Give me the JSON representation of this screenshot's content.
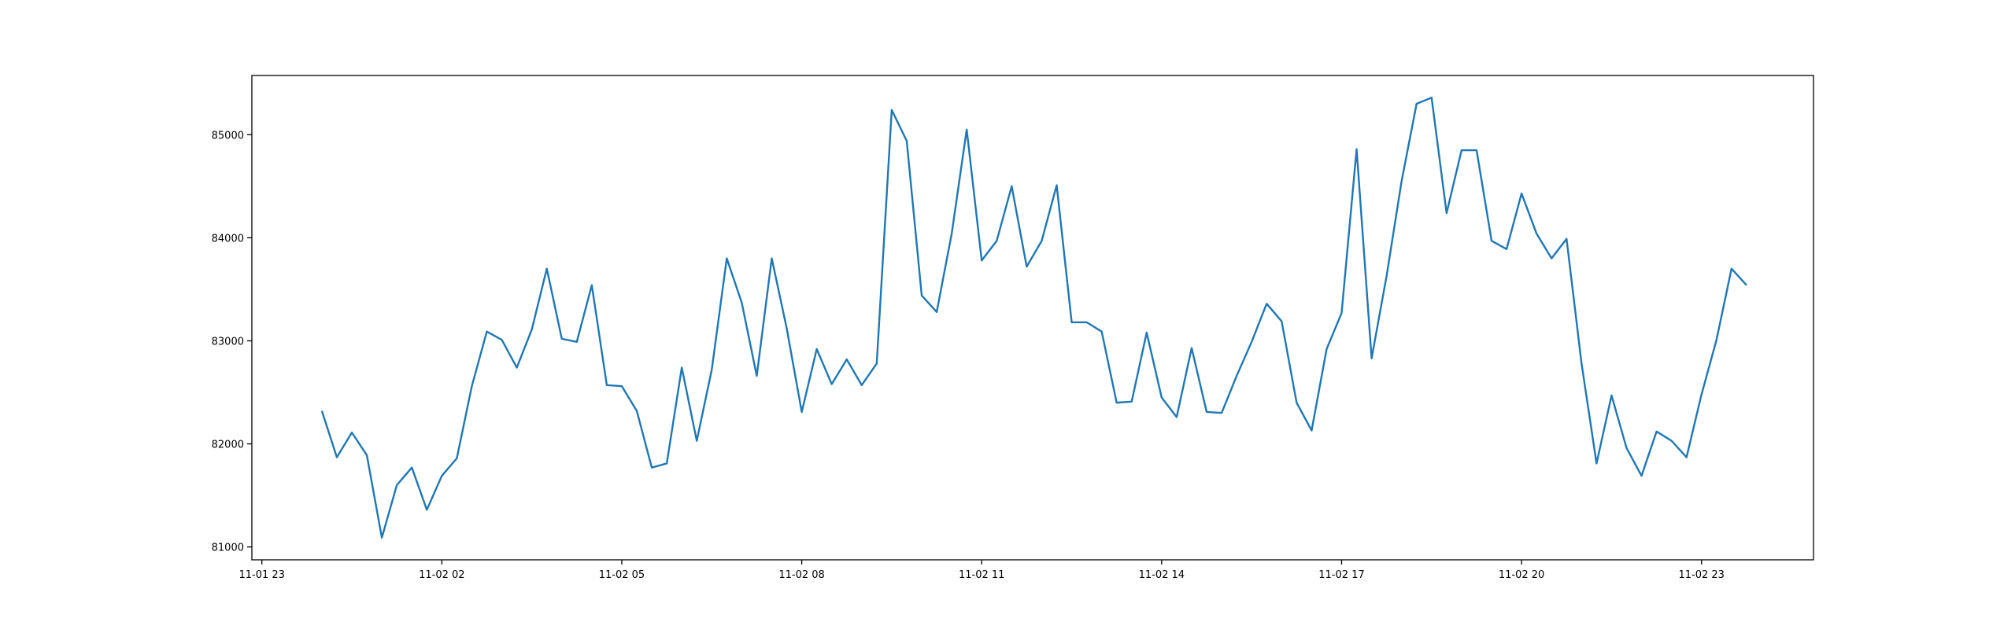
{
  "chart_data": {
    "type": "line",
    "color": "#1f77b4",
    "x": [
      "11-02 00:00",
      "11-02 00:15",
      "11-02 00:30",
      "11-02 00:45",
      "11-02 01:00",
      "11-02 01:15",
      "11-02 01:30",
      "11-02 01:45",
      "11-02 02:00",
      "11-02 02:15",
      "11-02 02:30",
      "11-02 02:45",
      "11-02 03:00",
      "11-02 03:15",
      "11-02 03:30",
      "11-02 03:45",
      "11-02 04:00",
      "11-02 04:15",
      "11-02 04:30",
      "11-02 04:45",
      "11-02 05:00",
      "11-02 05:15",
      "11-02 05:30",
      "11-02 05:45",
      "11-02 06:00",
      "11-02 06:15",
      "11-02 06:30",
      "11-02 06:45",
      "11-02 07:00",
      "11-02 07:15",
      "11-02 07:30",
      "11-02 07:45",
      "11-02 08:00",
      "11-02 08:15",
      "11-02 08:30",
      "11-02 08:45",
      "11-02 09:00",
      "11-02 09:15",
      "11-02 09:30",
      "11-02 09:45",
      "11-02 10:00",
      "11-02 10:15",
      "11-02 10:30",
      "11-02 10:45",
      "11-02 11:00",
      "11-02 11:15",
      "11-02 11:30",
      "11-02 11:45",
      "11-02 12:00",
      "11-02 12:15",
      "11-02 12:30",
      "11-02 12:45",
      "11-02 13:00",
      "11-02 13:15",
      "11-02 13:30",
      "11-02 13:45",
      "11-02 14:00",
      "11-02 14:15",
      "11-02 14:30",
      "11-02 14:45",
      "11-02 15:00",
      "11-02 15:15",
      "11-02 15:30",
      "11-02 15:45",
      "11-02 16:00",
      "11-02 16:15",
      "11-02 16:30",
      "11-02 16:45",
      "11-02 17:00",
      "11-02 17:15",
      "11-02 17:30",
      "11-02 17:45",
      "11-02 18:00",
      "11-02 18:15",
      "11-02 18:30",
      "11-02 18:45",
      "11-02 19:00",
      "11-02 19:15",
      "11-02 19:30",
      "11-02 19:45",
      "11-02 20:00",
      "11-02 20:15",
      "11-02 20:30",
      "11-02 20:45",
      "11-02 21:00",
      "11-02 21:15",
      "11-02 21:30",
      "11-02 21:45",
      "11-02 22:00",
      "11-02 22:15",
      "11-02 22:30",
      "11-02 22:45",
      "11-02 23:00",
      "11-02 23:15",
      "11-02 23:30",
      "11-02 23:45"
    ],
    "values": [
      82320,
      81870,
      82110,
      81890,
      81090,
      81600,
      81770,
      81360,
      81690,
      81860,
      82560,
      83090,
      83010,
      82740,
      83110,
      83700,
      83020,
      82990,
      83540,
      82570,
      82560,
      82320,
      81770,
      81810,
      82740,
      82030,
      82720,
      83800,
      83370,
      82660,
      83800,
      83120,
      82310,
      82920,
      82580,
      82820,
      82570,
      82780,
      85240,
      84940,
      83440,
      83280,
      84040,
      85050,
      83780,
      83970,
      84500,
      83720,
      83970,
      84510,
      83180,
      83180,
      83090,
      82400,
      82410,
      83080,
      82450,
      82260,
      82930,
      82310,
      82300,
      82660,
      82990,
      83360,
      83190,
      82400,
      82130,
      82920,
      83270,
      84860,
      82830,
      83630,
      84550,
      85300,
      85360,
      84240,
      84850,
      84850,
      83970,
      83890,
      84430,
      84040,
      83800,
      83990,
      82780,
      81810,
      82470,
      81960,
      81690,
      82120,
      82030,
      81870,
      82480,
      83010,
      83700,
      83540
    ],
    "xlim": [
      "11-01 22:50",
      "11-03 00:52"
    ],
    "xticks": [
      {
        "value": "11-01 23:00",
        "label": "11-01 23"
      },
      {
        "value": "11-02 02:00",
        "label": "11-02 02"
      },
      {
        "value": "11-02 05:00",
        "label": "11-02 05"
      },
      {
        "value": "11-02 08:00",
        "label": "11-02 08"
      },
      {
        "value": "11-02 11:00",
        "label": "11-02 11"
      },
      {
        "value": "11-02 14:00",
        "label": "11-02 14"
      },
      {
        "value": "11-02 17:00",
        "label": "11-02 17"
      },
      {
        "value": "11-02 20:00",
        "label": "11-02 20"
      },
      {
        "value": "11-02 23:00",
        "label": "11-02 23"
      }
    ],
    "ylim": [
      80875,
      85575
    ],
    "yticks": [
      81000,
      82000,
      83000,
      84000,
      85000
    ]
  }
}
